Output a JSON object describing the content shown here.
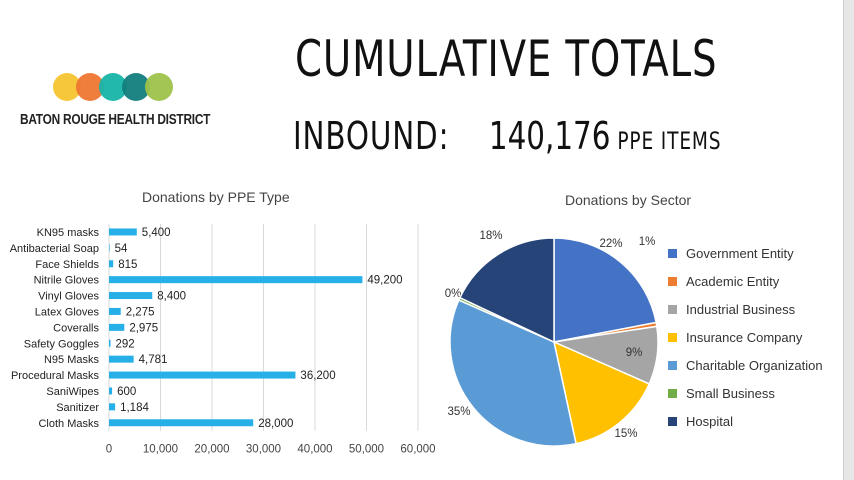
{
  "header": {
    "title": "CUMULATIVE TOTALS",
    "inbound_label": "INBOUND:",
    "inbound_value": "140,176",
    "inbound_unit": "PPE ITEMS"
  },
  "logo": {
    "text": "BATON ROUGE HEALTH DISTRICT",
    "circle_colors": [
      "#f6c430",
      "#ee7630",
      "#16b4a8",
      "#127e7d",
      "#9dc24a"
    ]
  },
  "chart_data": [
    {
      "type": "bar",
      "orientation": "horizontal",
      "title": "Donations by PPE Type",
      "categories": [
        "KN95 masks",
        "Antibacterial Soap",
        "Face Shields",
        "Nitrile Gloves",
        "Vinyl Gloves",
        "Latex Gloves",
        "Coveralls",
        "Safety Goggles",
        "N95 Masks",
        "Procedural Masks",
        "SaniWipes",
        "Sanitizer",
        "Cloth Masks"
      ],
      "values": [
        5400,
        54,
        815,
        49200,
        8400,
        2275,
        2975,
        292,
        4781,
        36200,
        600,
        1184,
        28000
      ],
      "value_labels": [
        "5,400",
        "54",
        "815",
        "49,200",
        "8,400",
        "2,275",
        "2,975",
        "292",
        "4,781",
        "36,200",
        "600",
        "1,184",
        "28,000"
      ],
      "xlim": [
        0,
        60000
      ],
      "xticks": [
        0,
        10000,
        20000,
        30000,
        40000,
        50000,
        60000
      ],
      "xtick_labels": [
        "0",
        "10,000",
        "20,000",
        "30,000",
        "40,000",
        "50,000",
        "60,000"
      ],
      "grid": true,
      "bar_color": "#27b0e8"
    },
    {
      "type": "pie",
      "title": "Donations by Sector",
      "labels": [
        "Government Entity",
        "Academic Entity",
        "Industrial Business",
        "Insurance Company",
        "Charitable Organization",
        "Small Business",
        "Hospital"
      ],
      "values": [
        22,
        0.6,
        9,
        15,
        35,
        0.4,
        18
      ],
      "value_labels": [
        "22%",
        "1%",
        "9%",
        "15%",
        "35%",
        "0%",
        "18%"
      ],
      "colors": [
        "#4472c4",
        "#ed7d31",
        "#a5a5a5",
        "#ffc000",
        "#5b9bd5",
        "#70ad47",
        "#264478"
      ],
      "legend": "right"
    }
  ]
}
